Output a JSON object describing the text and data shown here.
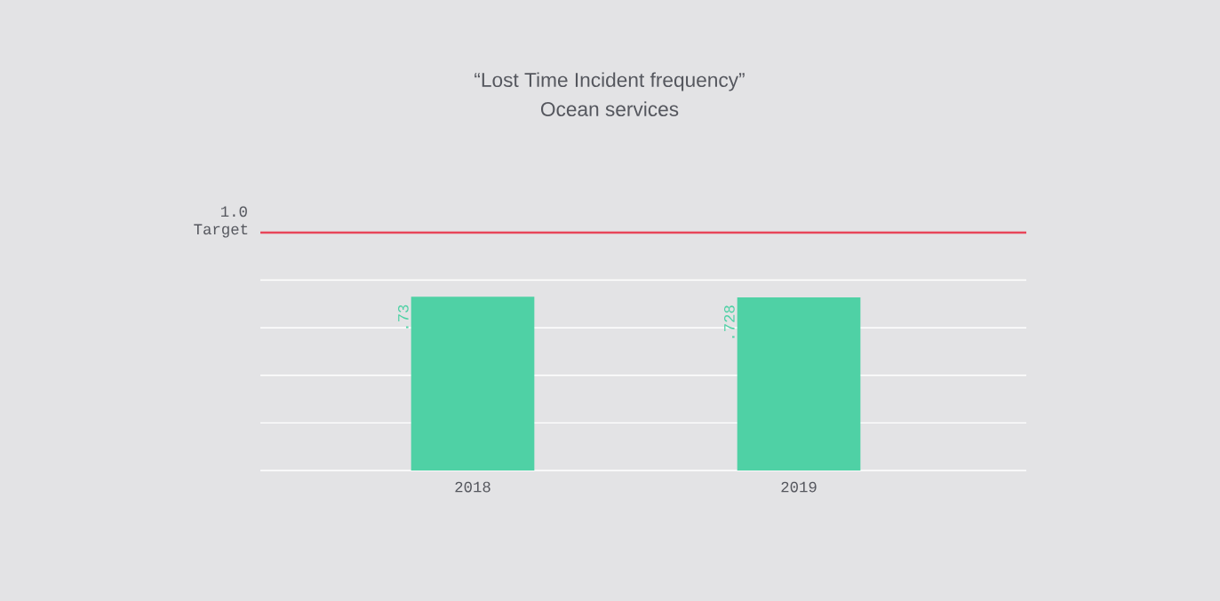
{
  "chart_data": {
    "type": "bar",
    "title": "“Lost Time Incident frequency”",
    "subtitle": "Ocean services",
    "categories": [
      "2018",
      "2019"
    ],
    "values": [
      0.73,
      0.728
    ],
    "value_labels": [
      ".73",
      ".728"
    ],
    "color": "#4fd1a5",
    "ylim": [
      0,
      1
    ],
    "yticks": [
      {
        "value": 0,
        "label": null
      },
      {
        "value": 0.2,
        "label": null
      },
      {
        "value": 0.4,
        "label": null
      },
      {
        "value": 0.6,
        "label": null
      },
      {
        "value": 0.8,
        "label": null
      }
    ],
    "ref_lines": [
      {
        "axis": "y",
        "value": 1.0,
        "label": "1.0 Target",
        "color": "#e8465a"
      }
    ],
    "grid": "y"
  }
}
